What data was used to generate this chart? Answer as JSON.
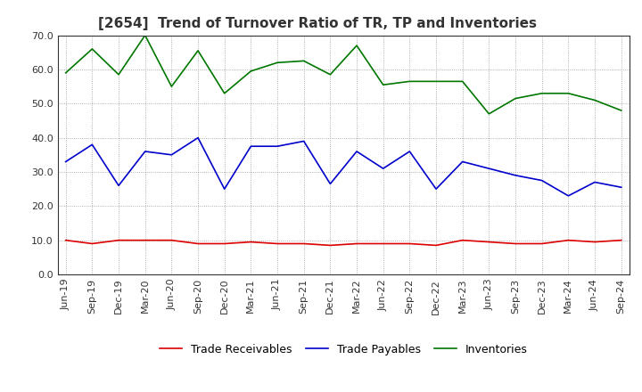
{
  "title": "[2654]  Trend of Turnover Ratio of TR, TP and Inventories",
  "x_labels": [
    "Jun-19",
    "Sep-19",
    "Dec-19",
    "Mar-20",
    "Jun-20",
    "Sep-20",
    "Dec-20",
    "Mar-21",
    "Jun-21",
    "Sep-21",
    "Dec-21",
    "Mar-22",
    "Jun-22",
    "Sep-22",
    "Dec-22",
    "Mar-23",
    "Jun-23",
    "Sep-23",
    "Dec-23",
    "Mar-24",
    "Jun-24",
    "Sep-24"
  ],
  "trade_receivables": [
    10.0,
    9.0,
    10.0,
    10.0,
    10.0,
    9.0,
    9.0,
    9.5,
    9.0,
    9.0,
    8.5,
    9.0,
    9.0,
    9.0,
    8.5,
    10.0,
    9.5,
    9.0,
    9.0,
    10.0,
    9.5,
    10.0
  ],
  "trade_payables": [
    33.0,
    38.0,
    26.0,
    36.0,
    35.0,
    40.0,
    25.0,
    37.5,
    37.5,
    39.0,
    26.5,
    36.0,
    31.0,
    36.0,
    25.0,
    33.0,
    31.0,
    29.0,
    27.5,
    23.0,
    27.0,
    25.5
  ],
  "inventories": [
    59.0,
    66.0,
    58.5,
    70.0,
    55.0,
    65.5,
    53.0,
    59.5,
    62.0,
    62.5,
    58.5,
    67.0,
    55.5,
    56.5,
    56.5,
    56.5,
    47.0,
    51.5,
    53.0,
    53.0,
    51.0,
    48.0
  ],
  "ylim": [
    0.0,
    70.0
  ],
  "yticks": [
    0.0,
    10.0,
    20.0,
    30.0,
    40.0,
    50.0,
    60.0,
    70.0
  ],
  "color_tr": "#dd0000",
  "color_tp": "#0000cc",
  "color_inv": "#007700",
  "legend_tr": "Trade Receivables",
  "legend_tp": "Trade Payables",
  "legend_inv": "Inventories",
  "background_color": "#ffffff",
  "grid_color": "#999999",
  "title_fontsize": 11,
  "axis_fontsize": 8,
  "legend_fontsize": 9
}
